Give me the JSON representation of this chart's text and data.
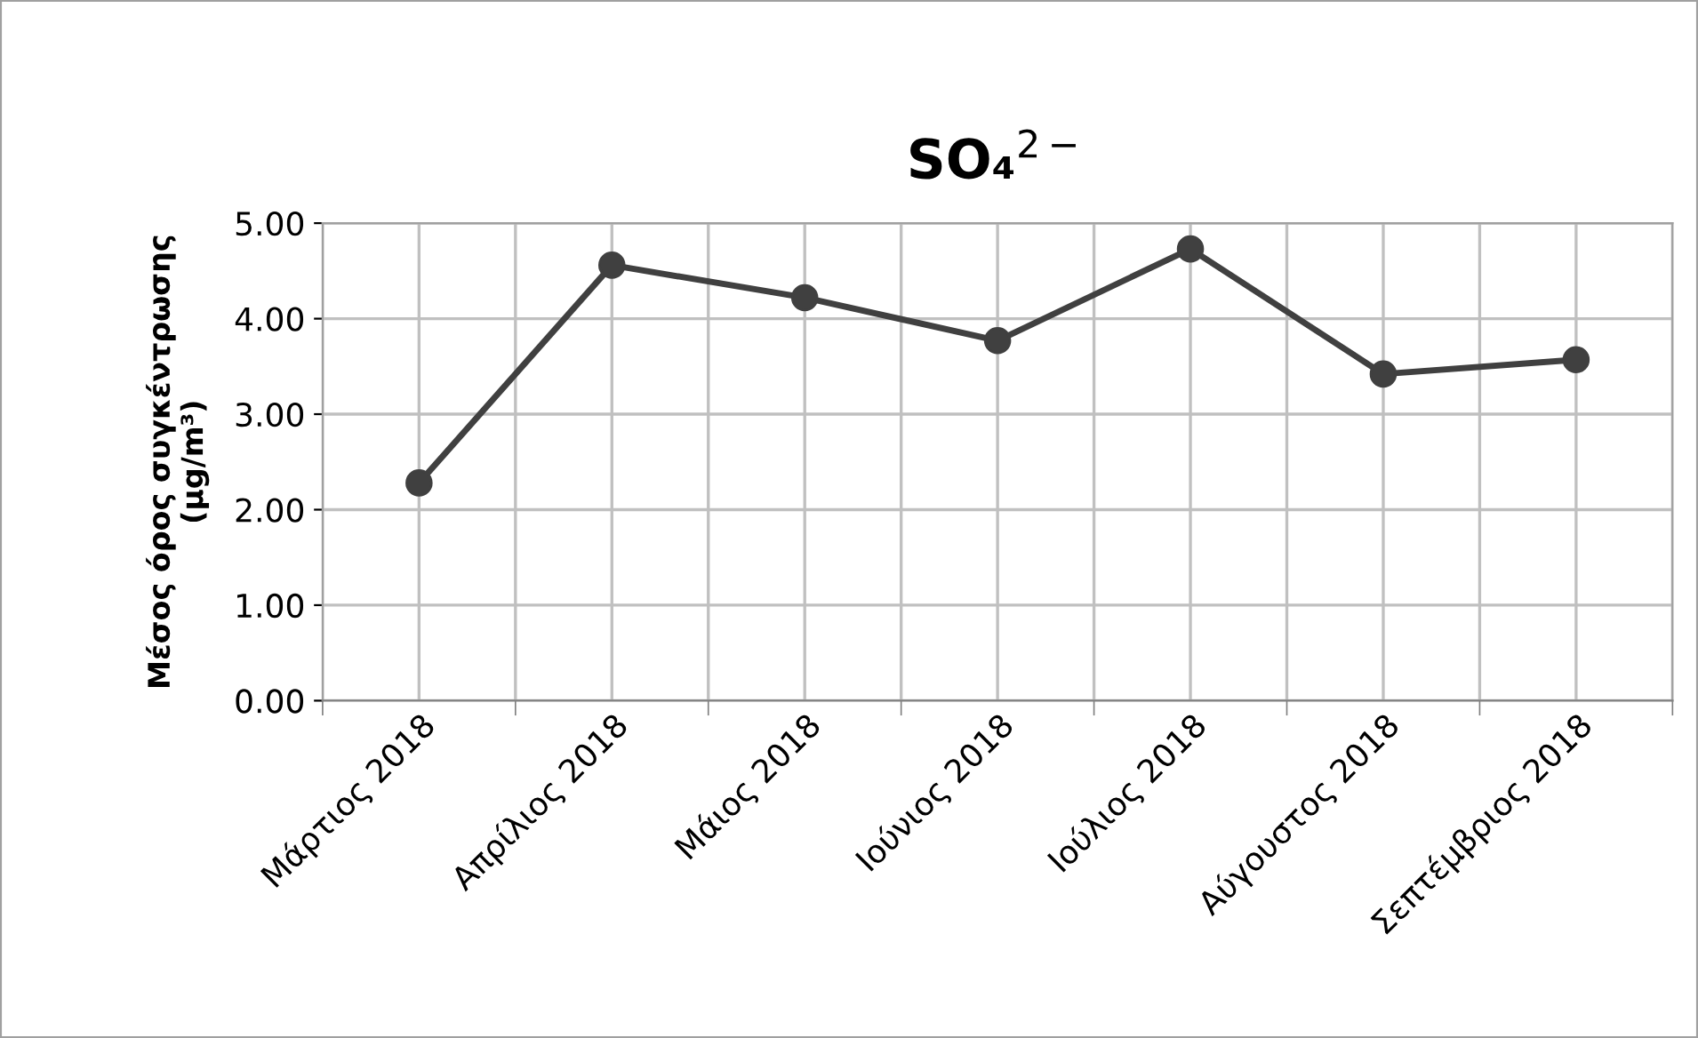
{
  "chart_data": {
    "type": "line",
    "title": "SO₄$^{2−}$",
    "ylabel": "Μέσος όρος συγκέντρωσης\n(μg/m³)",
    "categories": [
      "Μάρτιος 2018",
      "Απρίλιος 2018",
      "Μάιος 2018",
      "Ιούνιος 2018",
      "Ιούλιος 2018",
      "Αύγουστος 2018",
      "Σεπτέμβριος 2018"
    ],
    "series": [
      {
        "color": "#404040",
        "values": [
          2.28,
          4.56,
          4.22,
          3.77,
          4.73,
          3.42,
          3.57
        ]
      }
    ],
    "ylim": [
      0,
      5
    ],
    "yticks": [
      {
        "value": 0,
        "label": "0.00"
      },
      {
        "value": 1,
        "label": "1.00"
      },
      {
        "value": 2,
        "label": "2.00"
      },
      {
        "value": 3,
        "label": "3.00"
      },
      {
        "value": 4,
        "label": "4.00"
      },
      {
        "value": 5,
        "label": "5.00"
      }
    ],
    "grid": true,
    "legend": false,
    "marker": "circle",
    "line_style": "solid"
  }
}
